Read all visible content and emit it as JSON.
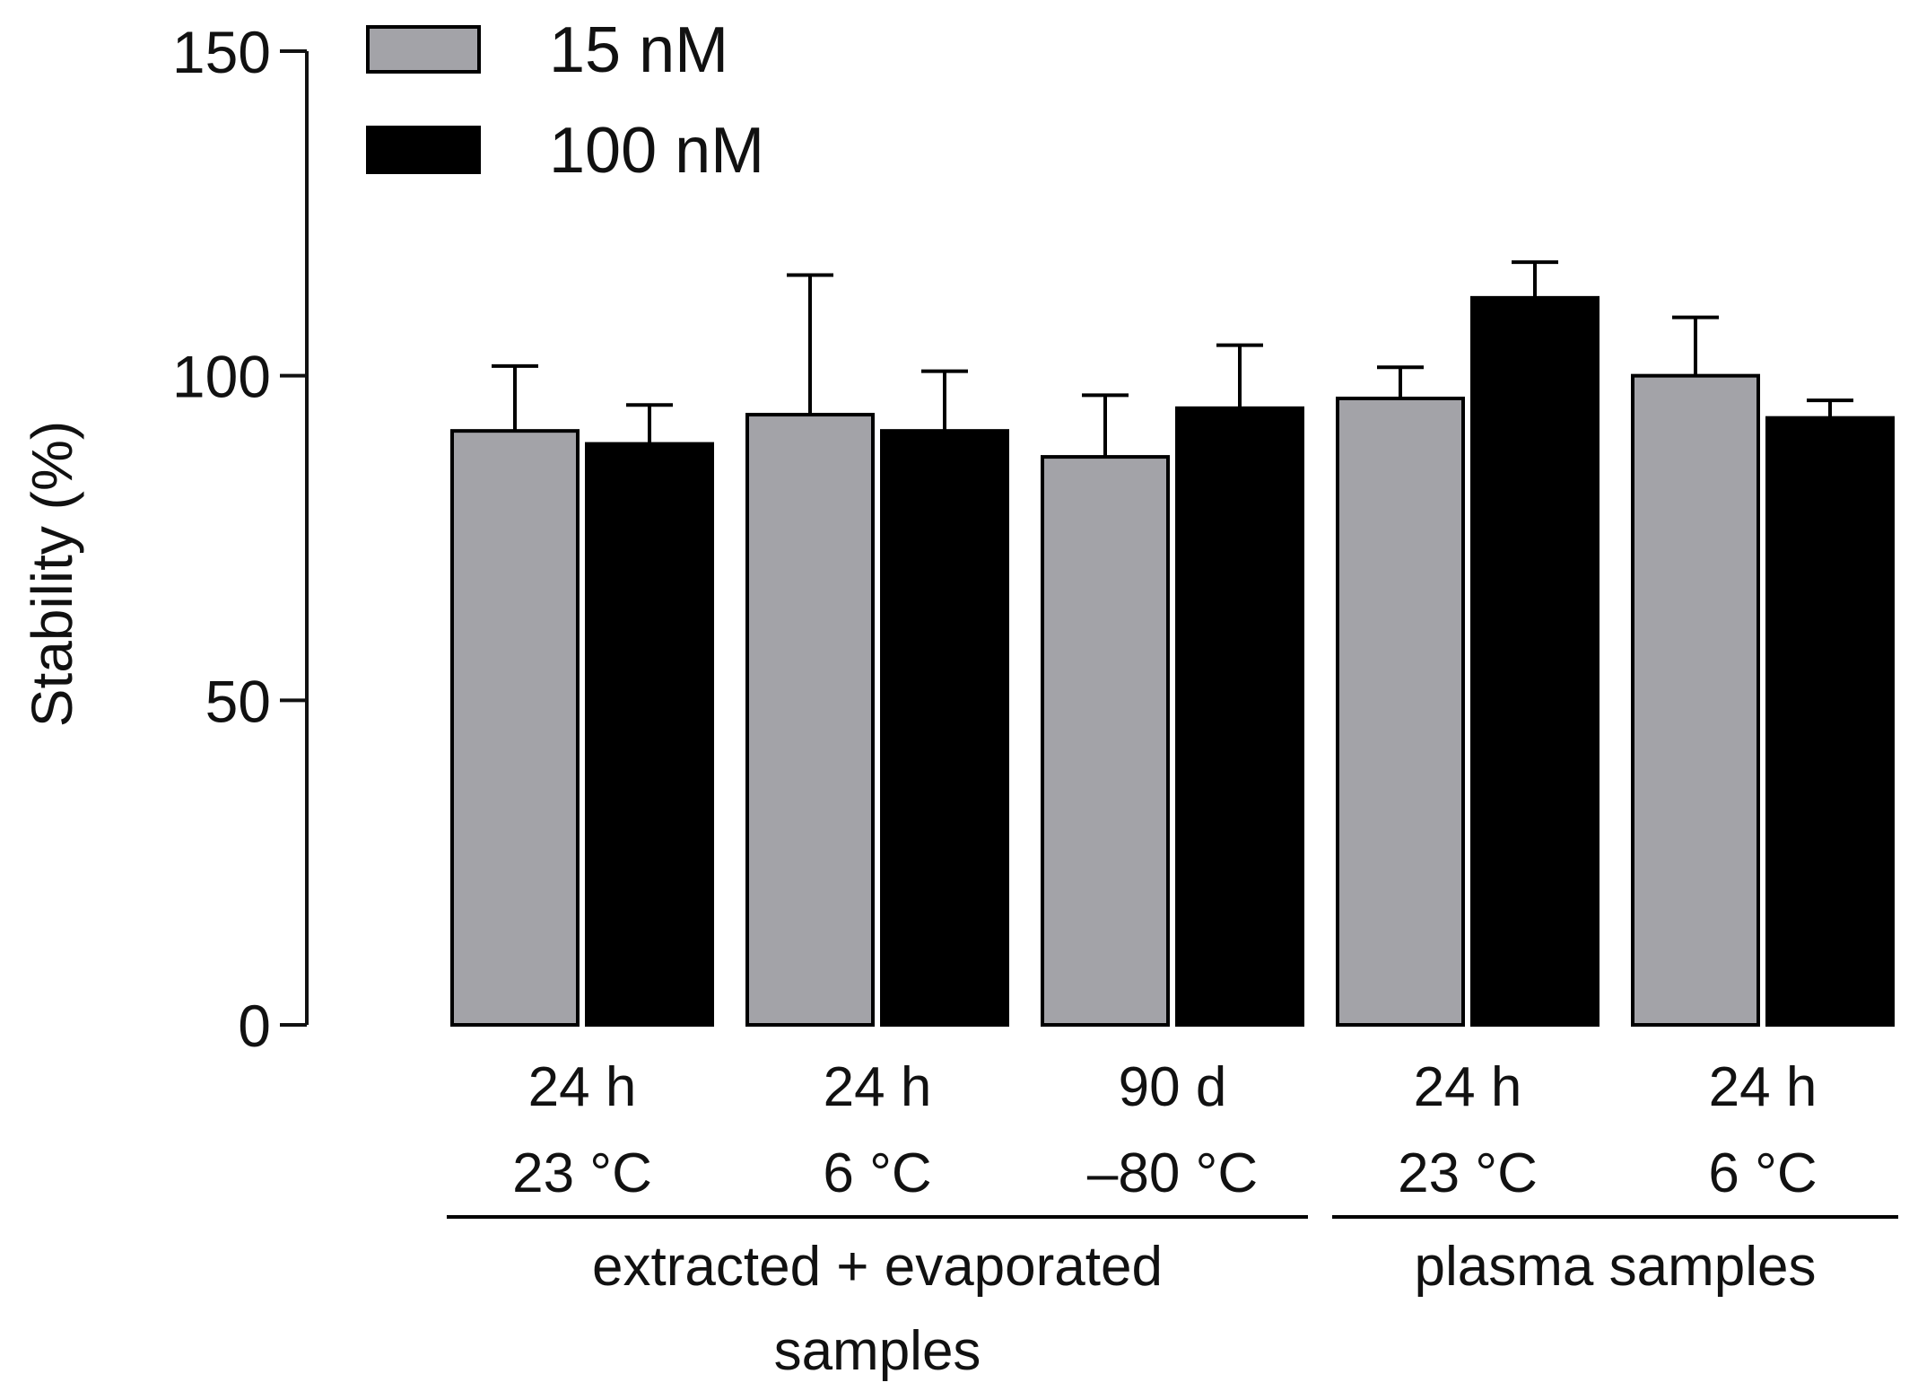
{
  "chart_data": {
    "type": "bar",
    "title": "",
    "xlabel": "",
    "ylabel": "Stability (%)",
    "ylim": [
      0,
      150
    ],
    "yticks": [
      0,
      50,
      100,
      150
    ],
    "grid": false,
    "legend_position": "top-left",
    "categories": [
      {
        "line1": "24 h",
        "line2": "23 °C"
      },
      {
        "line1": "24 h",
        "line2": "6 °C"
      },
      {
        "line1": "90 d",
        "line2": "–80 °C"
      },
      {
        "line1": "24 h",
        "line2": "23 °C"
      },
      {
        "line1": "24 h",
        "line2": "6 °C"
      }
    ],
    "series": [
      {
        "name": "15 nM",
        "color": "#a3a3a8",
        "values": [
          91.5,
          94.0,
          87.5,
          96.5,
          100.0
        ],
        "errors": [
          10.0,
          21.5,
          9.5,
          4.8,
          9.0
        ]
      },
      {
        "name": "100 nM",
        "color": "#000000",
        "values": [
          89.5,
          91.5,
          95.0,
          112.0,
          93.5
        ],
        "errors": [
          6.0,
          9.2,
          9.7,
          5.5,
          2.7
        ]
      }
    ],
    "groups": [
      {
        "label_lines": [
          "extracted + evaporated",
          "samples"
        ],
        "category_indices": [
          0,
          1,
          2
        ]
      },
      {
        "label_lines": [
          "plasma samples"
        ],
        "category_indices": [
          3,
          4
        ]
      }
    ]
  }
}
